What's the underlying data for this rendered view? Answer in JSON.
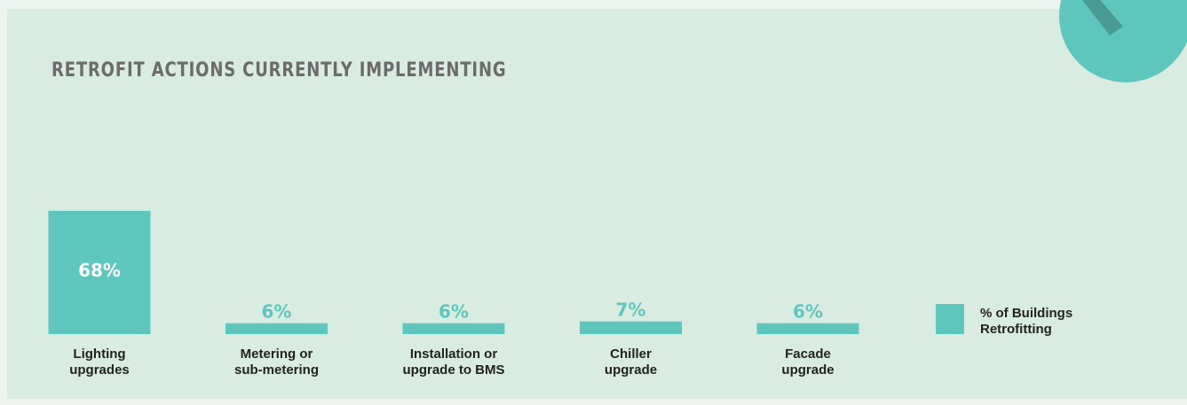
{
  "chart_data": {
    "type": "bar",
    "title": "RETROFIT ACTIONS CURRENTLY IMPLEMENTING",
    "categories": [
      [
        "Lighting",
        "upgrades"
      ],
      [
        "Metering or",
        "sub-metering"
      ],
      [
        "Installation or",
        "upgrade to BMS"
      ],
      [
        "Chiller",
        "upgrade"
      ],
      [
        "Facade",
        "upgrade"
      ]
    ],
    "series": [
      {
        "name": "% of Buildings Retrofitting",
        "color": "#5fc6bf",
        "values": [
          68,
          6,
          6,
          7,
          6
        ],
        "value_labels": [
          "68%",
          "6%",
          "6%",
          "7%",
          "6%"
        ]
      }
    ]
  }
}
